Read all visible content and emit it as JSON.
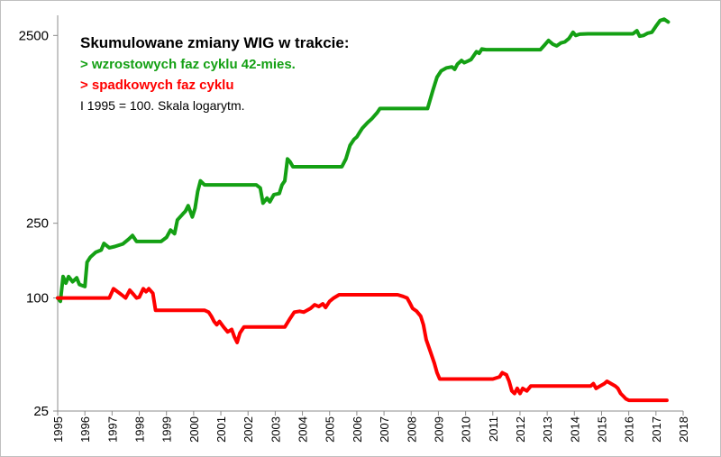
{
  "chart_data": {
    "type": "line",
    "title": "Skumulowane zmiany WIG w trakcie:",
    "legend_entries": [
      {
        "label": "> wzrostowych faz cyklu 42-mies.",
        "color": "#14a014"
      },
      {
        "label": "> spadkowych faz cyklu",
        "color": "#ff0000"
      }
    ],
    "note": "I 1995 = 100. Skala logarytm.",
    "y_scale": "log",
    "ylim": [
      25,
      3200
    ],
    "yticks": [
      25,
      100,
      250,
      2500
    ],
    "ytick_labels": [
      "25",
      "100",
      "250",
      "2500"
    ],
    "xlim": [
      1995,
      2018
    ],
    "xticks": [
      1995,
      1996,
      1997,
      1998,
      1999,
      2000,
      2001,
      2002,
      2003,
      2004,
      2005,
      2006,
      2007,
      2008,
      2009,
      2010,
      2011,
      2012,
      2013,
      2014,
      2015,
      2016,
      2017,
      2018
    ],
    "xtick_labels": [
      "1995",
      "1996",
      "1997",
      "1998",
      "1999",
      "2000",
      "2001",
      "2002",
      "2003",
      "2004",
      "2005",
      "2006",
      "2007",
      "2008",
      "2009",
      "2010",
      "2011",
      "2012",
      "2013",
      "2014",
      "2015",
      "2016",
      "2017",
      "2018"
    ],
    "legend_position": "top-left",
    "grid": false,
    "series": [
      {
        "color": "#14a014",
        "points": [
          [
            1995.0,
            100
          ],
          [
            1995.1,
            96
          ],
          [
            1995.2,
            130
          ],
          [
            1995.3,
            120
          ],
          [
            1995.4,
            130
          ],
          [
            1995.55,
            122
          ],
          [
            1995.7,
            128
          ],
          [
            1995.8,
            118
          ],
          [
            1996.0,
            115
          ],
          [
            1996.08,
            155
          ],
          [
            1996.2,
            165
          ],
          [
            1996.4,
            175
          ],
          [
            1996.6,
            180
          ],
          [
            1996.7,
            195
          ],
          [
            1996.9,
            185
          ],
          [
            1997.1,
            188
          ],
          [
            1997.4,
            194
          ],
          [
            1997.6,
            205
          ],
          [
            1997.75,
            215
          ],
          [
            1997.9,
            200
          ],
          [
            1998.0,
            200
          ],
          [
            1998.4,
            200
          ],
          [
            1998.8,
            200
          ],
          [
            1999.0,
            210
          ],
          [
            1999.15,
            230
          ],
          [
            1999.3,
            220
          ],
          [
            1999.4,
            260
          ],
          [
            1999.6,
            280
          ],
          [
            1999.7,
            290
          ],
          [
            1999.8,
            310
          ],
          [
            1999.95,
            270
          ],
          [
            2000.05,
            300
          ],
          [
            2000.15,
            370
          ],
          [
            2000.25,
            420
          ],
          [
            2000.4,
            400
          ],
          [
            2000.6,
            400
          ],
          [
            2001.0,
            400
          ],
          [
            2001.5,
            400
          ],
          [
            2002.0,
            400
          ],
          [
            2002.3,
            400
          ],
          [
            2002.45,
            385
          ],
          [
            2002.55,
            320
          ],
          [
            2002.7,
            340
          ],
          [
            2002.8,
            325
          ],
          [
            2002.95,
            355
          ],
          [
            2003.15,
            360
          ],
          [
            2003.25,
            400
          ],
          [
            2003.35,
            420
          ],
          [
            2003.45,
            550
          ],
          [
            2003.55,
            530
          ],
          [
            2003.65,
            500
          ],
          [
            2004.0,
            500
          ],
          [
            2004.5,
            500
          ],
          [
            2005.0,
            500
          ],
          [
            2005.45,
            500
          ],
          [
            2005.6,
            550
          ],
          [
            2005.75,
            650
          ],
          [
            2005.9,
            700
          ],
          [
            2006.0,
            720
          ],
          [
            2006.1,
            760
          ],
          [
            2006.2,
            800
          ],
          [
            2006.4,
            860
          ],
          [
            2006.55,
            900
          ],
          [
            2006.75,
            970
          ],
          [
            2006.85,
            1020
          ],
          [
            2007.0,
            1020
          ],
          [
            2007.5,
            1020
          ],
          [
            2008.0,
            1020
          ],
          [
            2008.6,
            1020
          ],
          [
            2008.8,
            1280
          ],
          [
            2008.95,
            1500
          ],
          [
            2009.1,
            1620
          ],
          [
            2009.3,
            1680
          ],
          [
            2009.5,
            1700
          ],
          [
            2009.6,
            1650
          ],
          [
            2009.7,
            1760
          ],
          [
            2009.85,
            1840
          ],
          [
            2009.95,
            1790
          ],
          [
            2010.1,
            1830
          ],
          [
            2010.2,
            1860
          ],
          [
            2010.4,
            2050
          ],
          [
            2010.5,
            2010
          ],
          [
            2010.6,
            2120
          ],
          [
            2010.75,
            2100
          ],
          [
            2011.0,
            2100
          ],
          [
            2011.5,
            2100
          ],
          [
            2012.0,
            2100
          ],
          [
            2012.5,
            2100
          ],
          [
            2012.75,
            2100
          ],
          [
            2012.9,
            2220
          ],
          [
            2013.05,
            2350
          ],
          [
            2013.2,
            2250
          ],
          [
            2013.35,
            2200
          ],
          [
            2013.5,
            2280
          ],
          [
            2013.65,
            2310
          ],
          [
            2013.8,
            2410
          ],
          [
            2013.95,
            2600
          ],
          [
            2014.05,
            2500
          ],
          [
            2014.2,
            2540
          ],
          [
            2014.5,
            2550
          ],
          [
            2015.0,
            2550
          ],
          [
            2015.5,
            2550
          ],
          [
            2016.0,
            2550
          ],
          [
            2016.15,
            2550
          ],
          [
            2016.3,
            2650
          ],
          [
            2016.4,
            2480
          ],
          [
            2016.55,
            2500
          ],
          [
            2016.7,
            2570
          ],
          [
            2016.85,
            2600
          ],
          [
            2017.0,
            2800
          ],
          [
            2017.15,
            3000
          ],
          [
            2017.3,
            3050
          ],
          [
            2017.45,
            2950
          ]
        ]
      },
      {
        "color": "#ff0000",
        "points": [
          [
            1995.0,
            100
          ],
          [
            1996.0,
            100
          ],
          [
            1996.9,
            100
          ],
          [
            1997.05,
            112
          ],
          [
            1997.2,
            108
          ],
          [
            1997.35,
            104
          ],
          [
            1997.5,
            100
          ],
          [
            1997.65,
            110
          ],
          [
            1997.8,
            104
          ],
          [
            1997.9,
            100
          ],
          [
            1998.0,
            101
          ],
          [
            1998.15,
            112
          ],
          [
            1998.25,
            108
          ],
          [
            1998.35,
            112
          ],
          [
            1998.5,
            106
          ],
          [
            1998.6,
            86
          ],
          [
            1998.8,
            86
          ],
          [
            1999.5,
            86
          ],
          [
            2000.0,
            86
          ],
          [
            2000.4,
            86
          ],
          [
            2000.55,
            84
          ],
          [
            2000.65,
            80
          ],
          [
            2000.75,
            75
          ],
          [
            2000.85,
            72
          ],
          [
            2000.95,
            75
          ],
          [
            2001.1,
            70
          ],
          [
            2001.25,
            66
          ],
          [
            2001.4,
            68
          ],
          [
            2001.5,
            62
          ],
          [
            2001.6,
            58
          ],
          [
            2001.7,
            65
          ],
          [
            2001.85,
            70
          ],
          [
            2002.0,
            70
          ],
          [
            2002.5,
            70
          ],
          [
            2003.0,
            70
          ],
          [
            2003.35,
            70
          ],
          [
            2003.55,
            78
          ],
          [
            2003.7,
            84
          ],
          [
            2003.9,
            85
          ],
          [
            2004.05,
            84
          ],
          [
            2004.3,
            88
          ],
          [
            2004.45,
            92
          ],
          [
            2004.6,
            90
          ],
          [
            2004.75,
            93
          ],
          [
            2004.85,
            89
          ],
          [
            2005.0,
            96
          ],
          [
            2005.15,
            100
          ],
          [
            2005.35,
            104
          ],
          [
            2005.55,
            104
          ],
          [
            2006.0,
            104
          ],
          [
            2006.5,
            104
          ],
          [
            2007.0,
            104
          ],
          [
            2007.5,
            104
          ],
          [
            2007.7,
            102
          ],
          [
            2007.85,
            100
          ],
          [
            2007.95,
            94
          ],
          [
            2008.05,
            88
          ],
          [
            2008.2,
            85
          ],
          [
            2008.35,
            80
          ],
          [
            2008.45,
            72
          ],
          [
            2008.55,
            60
          ],
          [
            2008.7,
            52
          ],
          [
            2008.85,
            45
          ],
          [
            2008.95,
            40
          ],
          [
            2009.05,
            37
          ],
          [
            2009.5,
            37
          ],
          [
            2010.0,
            37
          ],
          [
            2010.5,
            37
          ],
          [
            2011.0,
            37
          ],
          [
            2011.25,
            38
          ],
          [
            2011.35,
            40
          ],
          [
            2011.5,
            39
          ],
          [
            2011.6,
            36
          ],
          [
            2011.7,
            32
          ],
          [
            2011.8,
            31
          ],
          [
            2011.9,
            33
          ],
          [
            2012.0,
            31
          ],
          [
            2012.1,
            33
          ],
          [
            2012.25,
            32
          ],
          [
            2012.4,
            34
          ],
          [
            2012.6,
            34
          ],
          [
            2013.0,
            34
          ],
          [
            2013.5,
            34
          ],
          [
            2014.0,
            34
          ],
          [
            2014.5,
            34
          ],
          [
            2014.6,
            34
          ],
          [
            2014.7,
            35
          ],
          [
            2014.8,
            33
          ],
          [
            2014.95,
            34
          ],
          [
            2015.1,
            35
          ],
          [
            2015.2,
            36
          ],
          [
            2015.35,
            35
          ],
          [
            2015.5,
            34
          ],
          [
            2015.6,
            33
          ],
          [
            2015.7,
            31
          ],
          [
            2015.8,
            30
          ],
          [
            2015.9,
            29
          ],
          [
            2016.0,
            28.5
          ],
          [
            2016.5,
            28.5
          ],
          [
            2017.0,
            28.5
          ],
          [
            2017.4,
            28.5
          ]
        ]
      }
    ]
  }
}
